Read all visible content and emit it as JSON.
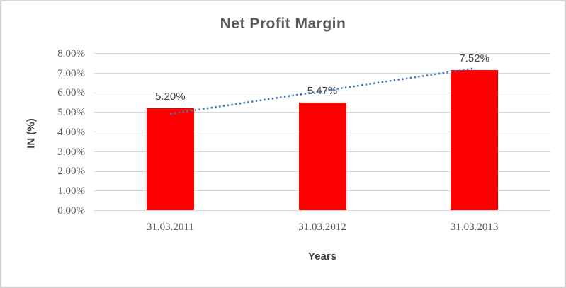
{
  "chart_data": {
    "type": "bar",
    "title": "Net Profit Margin",
    "categories": [
      "31.03.2011",
      "31.03.2012",
      "31.03.2013"
    ],
    "values": [
      5.2,
      5.47,
      7.52
    ],
    "data_labels": [
      "5.20%",
      "5.47%",
      "7.52%"
    ],
    "xlabel": "Years",
    "ylabel": "IN (%)",
    "ylim": [
      0,
      8
    ],
    "ytick_step": 1,
    "ytick_labels_top_to_bottom": [
      "8.00%",
      "7.00%",
      "6.00%",
      "5.00%",
      "4.00%",
      "3.00%",
      "2.00%",
      "1.00%",
      "0.00%"
    ],
    "grid": true,
    "legend": "none",
    "bar_color": "#ff0000",
    "trendline": {
      "kind": "linear",
      "style": "dotted",
      "color": "#4472c4"
    }
  }
}
